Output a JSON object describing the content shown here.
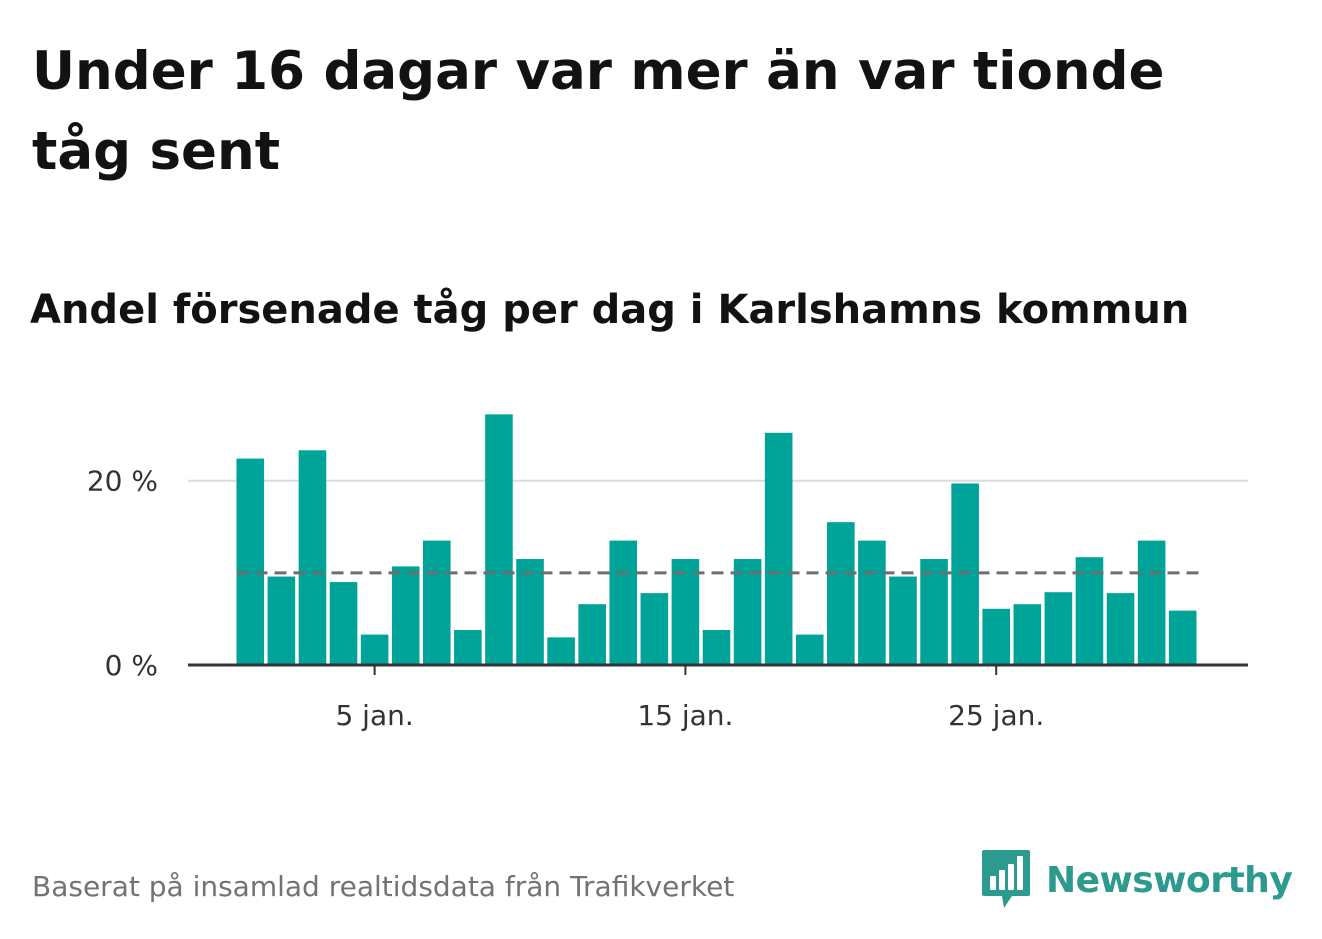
{
  "title": "Under 16 dagar var mer än var tionde tåg sent",
  "subtitle": "Andel försenade tåg per dag i Karlshamns kommun",
  "source": "Baserat på insamlad realtidsdata från Trafikverket",
  "brand": "Newsworthy",
  "colors": {
    "bar": "#00a398",
    "gridline": "#dcdcdc",
    "axis": "#333333",
    "reference": "#6e6e6e",
    "brand": "#2c9a8f",
    "text": "#121212",
    "muted": "#737373"
  },
  "chart_data": {
    "type": "bar",
    "x_unit": "day of January",
    "x": [
      1,
      2,
      3,
      4,
      5,
      6,
      7,
      8,
      9,
      10,
      11,
      12,
      13,
      14,
      15,
      16,
      17,
      18,
      19,
      20,
      21,
      22,
      23,
      24,
      25,
      26,
      27,
      28,
      29,
      30,
      31
    ],
    "values": [
      22.4,
      9.6,
      23.3,
      9.0,
      3.3,
      10.7,
      13.5,
      3.8,
      27.2,
      11.5,
      3.0,
      6.6,
      13.5,
      7.8,
      11.5,
      3.8,
      11.5,
      25.2,
      3.3,
      15.5,
      13.5,
      9.6,
      11.5,
      19.7,
      6.1,
      6.6,
      7.9,
      11.7,
      7.8,
      13.5,
      5.9
    ],
    "reference_line": 10,
    "ylim": [
      0,
      28
    ],
    "yticks": [
      0,
      20
    ],
    "ytick_labels": [
      "0 %",
      "20 %"
    ],
    "xticks": [
      5,
      15,
      25
    ],
    "xtick_labels": [
      "5 jan.",
      "15 jan.",
      "25 jan."
    ],
    "grid": true
  }
}
